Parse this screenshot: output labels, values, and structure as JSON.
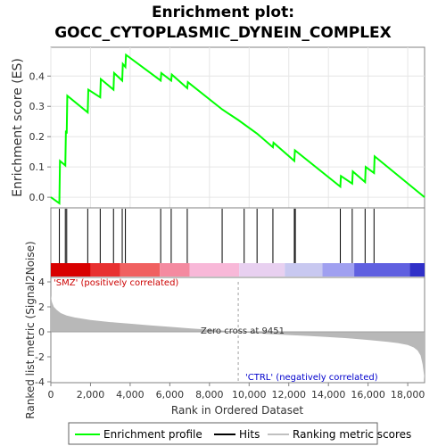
{
  "title_line1": "Enrichment plot:",
  "title_line2": "GOCC_CYTOPLASMIC_DYNEIN_COMPLEX",
  "chart_data": [
    {
      "type": "line",
      "ylabel": "Enrichment score (ES)",
      "xlim": [
        0,
        18850
      ],
      "ylim": [
        -0.035,
        0.495
      ],
      "yticks": [
        "0.0",
        "0.1",
        "0.2",
        "0.3",
        "0.4"
      ],
      "ytick_values": [
        0.0,
        0.1,
        0.2,
        0.3,
        0.4
      ],
      "grid": true,
      "series": [
        {
          "name": "Enrichment profile",
          "color": "#00ff00",
          "x": [
            0,
            430,
            460,
            730,
            760,
            800,
            830,
            1860,
            1890,
            2490,
            2520,
            3160,
            3190,
            3600,
            3630,
            3760,
            3790,
            5540,
            5570,
            6070,
            6100,
            6880,
            6910,
            8640,
            9450,
            10400,
            11200,
            11230,
            12280,
            12310,
            14600,
            14630,
            15200,
            15230,
            15850,
            15880,
            16300,
            16330,
            18850
          ],
          "y": [
            0.0,
            -0.02,
            0.12,
            0.105,
            0.22,
            0.21,
            0.335,
            0.28,
            0.355,
            0.33,
            0.39,
            0.355,
            0.41,
            0.385,
            0.44,
            0.43,
            0.47,
            0.385,
            0.41,
            0.385,
            0.405,
            0.36,
            0.38,
            0.29,
            0.255,
            0.21,
            0.165,
            0.18,
            0.12,
            0.155,
            0.035,
            0.07,
            0.045,
            0.085,
            0.05,
            0.1,
            0.08,
            0.135,
            0.0
          ]
        }
      ]
    },
    {
      "type": "hits",
      "hit_positions": [
        430,
        730,
        800,
        1860,
        2490,
        3160,
        3600,
        3760,
        5540,
        6070,
        6880,
        8640,
        9750,
        10400,
        11200,
        12280,
        12330,
        14600,
        15200,
        15850,
        16300
      ],
      "color_bar": {
        "colors": [
          "#d80000",
          "#e83030",
          "#f06060",
          "#f48aa0",
          "#f8b8d8",
          "#e8d0f0",
          "#c8c8f0",
          "#a0a0f0",
          "#6060e0",
          "#3030c8",
          "#0000a0"
        ],
        "stops": [
          0,
          2000,
          3500,
          5500,
          7000,
          9500,
          11800,
          13700,
          15300,
          18100,
          18850
        ]
      }
    },
    {
      "type": "area",
      "xlabel": "Rank in Ordered Dataset",
      "ylabel": "Ranked list metric (Signal2Noise)",
      "xlim": [
        0,
        18850
      ],
      "ylim": [
        -4,
        4
      ],
      "xticks": [
        "0",
        "2,000",
        "4,000",
        "6,000",
        "8,000",
        "10,000",
        "12,000",
        "14,000",
        "16,000",
        "18,000"
      ],
      "xtick_values": [
        0,
        2000,
        4000,
        6000,
        8000,
        10000,
        12000,
        14000,
        16000,
        18000
      ],
      "yticks": [
        "-4",
        "-2",
        "0",
        "2",
        "4"
      ],
      "ytick_values": [
        -4,
        -2,
        0,
        2,
        4
      ],
      "x": [
        0,
        50,
        150,
        300,
        500,
        800,
        1200,
        2000,
        3000,
        4000,
        5000,
        6000,
        7000,
        8000,
        9000,
        9451,
        10000,
        11000,
        12000,
        13000,
        14000,
        15000,
        16000,
        17000,
        17500,
        18000,
        18300,
        18500,
        18650,
        18750,
        18850
      ],
      "values": [
        2.9,
        2.4,
        2.0,
        1.75,
        1.5,
        1.3,
        1.15,
        0.95,
        0.78,
        0.65,
        0.52,
        0.4,
        0.28,
        0.17,
        0.06,
        0.0,
        -0.08,
        -0.18,
        -0.26,
        -0.33,
        -0.42,
        -0.52,
        -0.65,
        -0.8,
        -0.9,
        -1.05,
        -1.25,
        -1.5,
        -1.9,
        -2.6,
        -3.8
      ],
      "annotations": {
        "zero_cross": "Zero cross at 9451",
        "zero_cross_value": 9451,
        "positive": "'SMZ' (positively correlated)",
        "negative": "'CTRL' (negatively correlated)"
      }
    }
  ],
  "legend": {
    "items": [
      {
        "label": "Enrichment profile",
        "color": "#00ff00",
        "symbol": "line"
      },
      {
        "label": "Hits",
        "color": "#000000",
        "symbol": "line"
      },
      {
        "label": "Ranking metric scores",
        "color": "#c0c0c0",
        "symbol": "line"
      }
    ]
  }
}
